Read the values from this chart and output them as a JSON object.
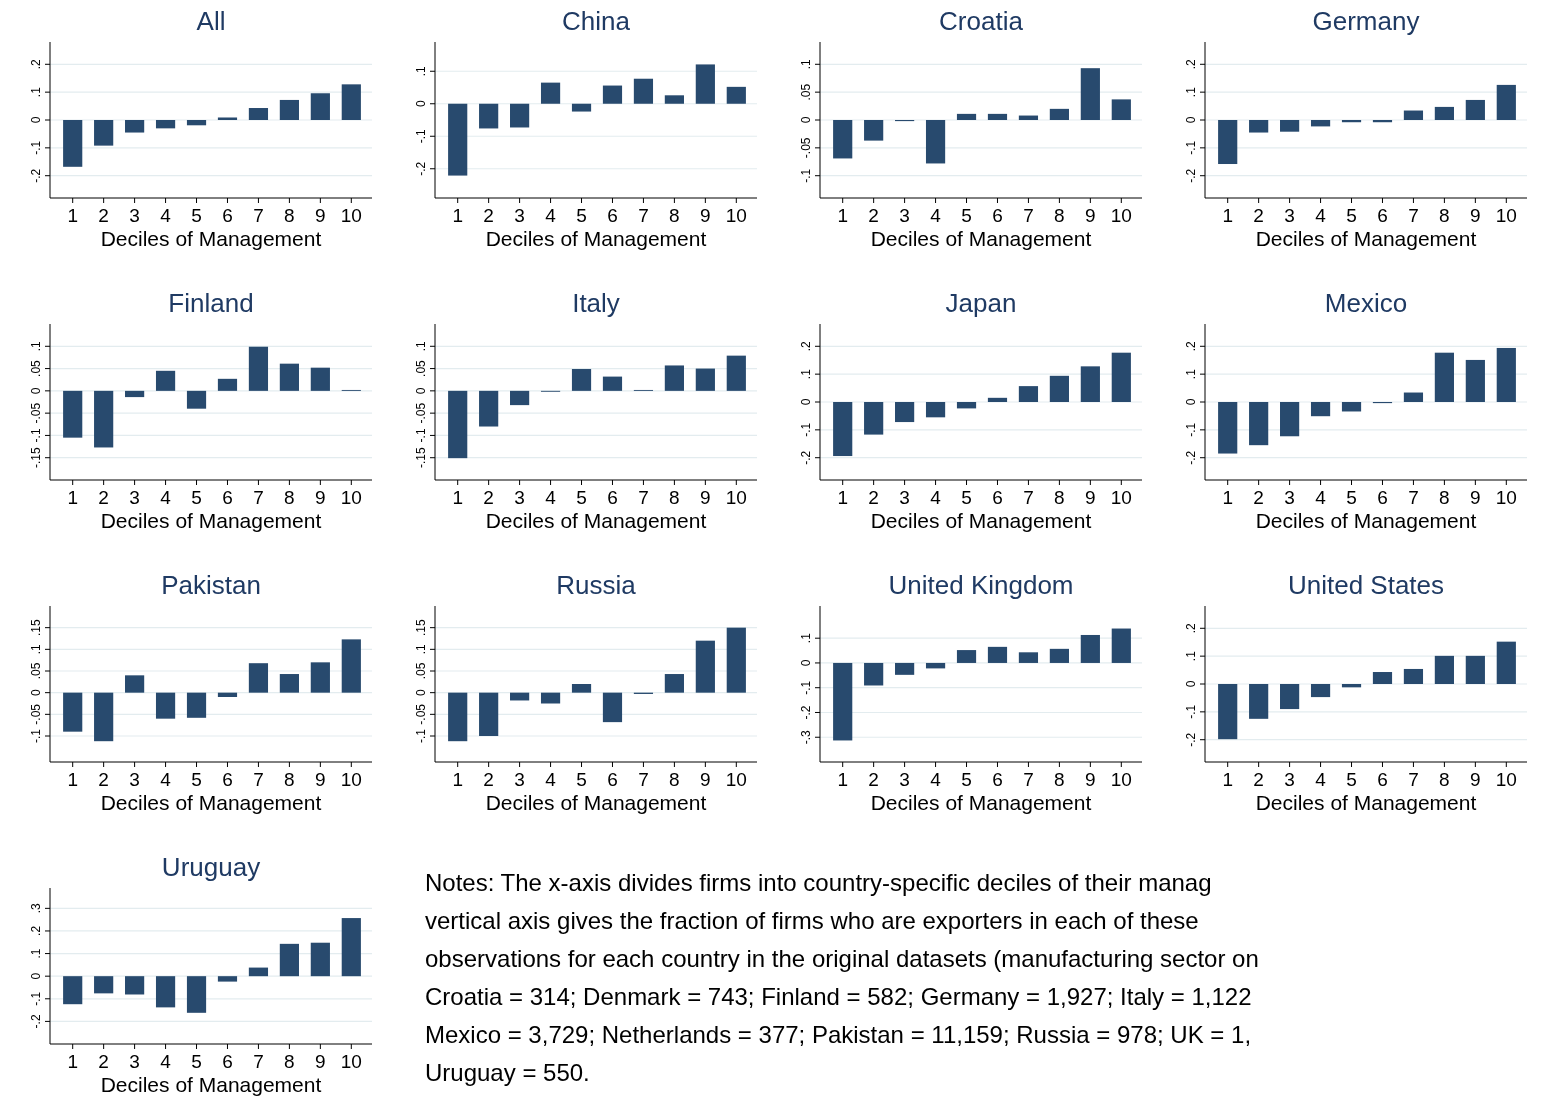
{
  "chart_data": [
    {
      "type": "bar",
      "title": "All",
      "xlabel": "Deciles of Management",
      "categories": [
        "1",
        "2",
        "3",
        "4",
        "5",
        "6",
        "7",
        "8",
        "9",
        "10"
      ],
      "values": [
        -0.168,
        -0.092,
        -0.045,
        -0.03,
        -0.019,
        0.009,
        0.043,
        0.072,
        0.096,
        0.128
      ],
      "color": "#284a6e",
      "ylim": [
        -0.28,
        0.28
      ],
      "yticks": [
        {
          "value": -0.2,
          "label": "-.2"
        },
        {
          "value": -0.1,
          "label": "-.1"
        },
        {
          "value": 0,
          "label": "0"
        },
        {
          "value": 0.1,
          "label": ".1"
        },
        {
          "value": 0.2,
          "label": ".2"
        }
      ],
      "grid": "y"
    },
    {
      "type": "bar",
      "title": "China",
      "xlabel": "Deciles of Management",
      "categories": [
        "1",
        "2",
        "3",
        "4",
        "5",
        "6",
        "7",
        "8",
        "9",
        "10"
      ],
      "values": [
        -0.221,
        -0.076,
        -0.073,
        0.065,
        -0.024,
        0.056,
        0.077,
        0.026,
        0.121,
        0.052
      ],
      "color": "#284a6e",
      "ylim": [
        -0.29,
        0.19
      ],
      "yticks": [
        {
          "value": -0.2,
          "label": "-.2"
        },
        {
          "value": -0.1,
          "label": "-.1"
        },
        {
          "value": 0,
          "label": "0"
        },
        {
          "value": 0.1,
          "label": ".1"
        }
      ],
      "grid": "y"
    },
    {
      "type": "bar",
      "title": "Croatia",
      "xlabel": "Deciles of Management",
      "categories": [
        "1",
        "2",
        "3",
        "4",
        "5",
        "6",
        "7",
        "8",
        "9",
        "10"
      ],
      "values": [
        -0.069,
        -0.037,
        -0.002,
        -0.078,
        0.011,
        0.011,
        0.008,
        0.02,
        0.093,
        0.037
      ],
      "color": "#284a6e",
      "ylim": [
        -0.14,
        0.14
      ],
      "yticks": [
        {
          "value": -0.1,
          "label": "-.1"
        },
        {
          "value": -0.05,
          "label": "-.05"
        },
        {
          "value": 0,
          "label": "0"
        },
        {
          "value": 0.05,
          "label": ".05"
        },
        {
          "value": 0.1,
          "label": ".1"
        }
      ],
      "grid": "y"
    },
    {
      "type": "bar",
      "title": "Germany",
      "xlabel": "Deciles of Management",
      "categories": [
        "1",
        "2",
        "3",
        "4",
        "5",
        "6",
        "7",
        "8",
        "9",
        "10"
      ],
      "values": [
        -0.158,
        -0.045,
        -0.042,
        -0.023,
        -0.008,
        -0.008,
        0.034,
        0.047,
        0.072,
        0.126
      ],
      "color": "#284a6e",
      "ylim": [
        -0.28,
        0.28
      ],
      "yticks": [
        {
          "value": -0.2,
          "label": "-.2"
        },
        {
          "value": -0.1,
          "label": "-.1"
        },
        {
          "value": 0,
          "label": "0"
        },
        {
          "value": 0.1,
          "label": ".1"
        },
        {
          "value": 0.2,
          "label": ".2"
        }
      ],
      "grid": "y"
    },
    {
      "type": "bar",
      "title": "Finland",
      "xlabel": "Deciles of Management",
      "categories": [
        "1",
        "2",
        "3",
        "4",
        "5",
        "6",
        "7",
        "8",
        "9",
        "10"
      ],
      "values": [
        -0.105,
        -0.127,
        -0.014,
        0.045,
        -0.04,
        0.027,
        0.099,
        0.061,
        0.052,
        0.002
      ],
      "color": "#284a6e",
      "ylim": [
        -0.2,
        0.15
      ],
      "yticks": [
        {
          "value": -0.15,
          "label": "-.15"
        },
        {
          "value": -0.1,
          "label": "-.1"
        },
        {
          "value": -0.05,
          "label": "-.05"
        },
        {
          "value": 0,
          "label": "0"
        },
        {
          "value": 0.05,
          "label": ".05"
        },
        {
          "value": 0.1,
          "label": ".1"
        }
      ],
      "grid": "y"
    },
    {
      "type": "bar",
      "title": "Italy",
      "xlabel": "Deciles of Management",
      "categories": [
        "1",
        "2",
        "3",
        "4",
        "5",
        "6",
        "7",
        "8",
        "9",
        "10"
      ],
      "values": [
        -0.151,
        -0.08,
        -0.032,
        -0.002,
        0.049,
        0.032,
        0.002,
        0.057,
        0.05,
        0.079
      ],
      "color": "#284a6e",
      "ylim": [
        -0.2,
        0.15
      ],
      "yticks": [
        {
          "value": -0.15,
          "label": "-.15"
        },
        {
          "value": -0.1,
          "label": "-.1"
        },
        {
          "value": -0.05,
          "label": "-.05"
        },
        {
          "value": 0,
          "label": "0"
        },
        {
          "value": 0.05,
          "label": ".05"
        },
        {
          "value": 0.1,
          "label": ".1"
        }
      ],
      "grid": "y"
    },
    {
      "type": "bar",
      "title": "Japan",
      "xlabel": "Deciles of Management",
      "categories": [
        "1",
        "2",
        "3",
        "4",
        "5",
        "6",
        "7",
        "8",
        "9",
        "10"
      ],
      "values": [
        -0.194,
        -0.117,
        -0.072,
        -0.055,
        -0.023,
        0.015,
        0.057,
        0.094,
        0.128,
        0.177
      ],
      "color": "#284a6e",
      "ylim": [
        -0.28,
        0.28
      ],
      "yticks": [
        {
          "value": -0.2,
          "label": "-.2"
        },
        {
          "value": -0.1,
          "label": "-.1"
        },
        {
          "value": 0,
          "label": "0"
        },
        {
          "value": 0.1,
          "label": ".1"
        },
        {
          "value": 0.2,
          "label": ".2"
        }
      ],
      "grid": "y"
    },
    {
      "type": "bar",
      "title": "Mexico",
      "xlabel": "Deciles of Management",
      "categories": [
        "1",
        "2",
        "3",
        "4",
        "5",
        "6",
        "7",
        "8",
        "9",
        "10"
      ],
      "values": [
        -0.185,
        -0.155,
        -0.123,
        -0.051,
        -0.034,
        -0.004,
        0.034,
        0.177,
        0.151,
        0.194
      ],
      "color": "#284a6e",
      "ylim": [
        -0.28,
        0.28
      ],
      "yticks": [
        {
          "value": -0.2,
          "label": "-.2"
        },
        {
          "value": -0.1,
          "label": "-.1"
        },
        {
          "value": 0,
          "label": "0"
        },
        {
          "value": 0.1,
          "label": ".1"
        },
        {
          "value": 0.2,
          "label": ".2"
        }
      ],
      "grid": "y"
    },
    {
      "type": "bar",
      "title": "Pakistan",
      "xlabel": "Deciles of Management",
      "categories": [
        "1",
        "2",
        "3",
        "4",
        "5",
        "6",
        "7",
        "8",
        "9",
        "10"
      ],
      "values": [
        -0.09,
        -0.112,
        0.04,
        -0.06,
        -0.058,
        -0.01,
        0.068,
        0.043,
        0.07,
        0.123
      ],
      "color": "#284a6e",
      "ylim": [
        -0.16,
        0.2
      ],
      "yticks": [
        {
          "value": -0.1,
          "label": "-.1"
        },
        {
          "value": -0.05,
          "label": "-.05"
        },
        {
          "value": 0,
          "label": "0"
        },
        {
          "value": 0.05,
          "label": ".05"
        },
        {
          "value": 0.1,
          "label": ".1"
        },
        {
          "value": 0.15,
          "label": ".15"
        }
      ],
      "grid": "y"
    },
    {
      "type": "bar",
      "title": "Russia",
      "xlabel": "Deciles of Management",
      "categories": [
        "1",
        "2",
        "3",
        "4",
        "5",
        "6",
        "7",
        "8",
        "9",
        "10"
      ],
      "values": [
        -0.112,
        -0.1,
        -0.018,
        -0.025,
        0.02,
        -0.068,
        -0.003,
        0.043,
        0.12,
        0.15
      ],
      "color": "#284a6e",
      "ylim": [
        -0.16,
        0.2
      ],
      "yticks": [
        {
          "value": -0.1,
          "label": "-.1"
        },
        {
          "value": -0.05,
          "label": "-.05"
        },
        {
          "value": 0,
          "label": "0"
        },
        {
          "value": 0.05,
          "label": ".05"
        },
        {
          "value": 0.1,
          "label": ".1"
        },
        {
          "value": 0.15,
          "label": ".15"
        }
      ],
      "grid": "y"
    },
    {
      "type": "bar",
      "title": "United Kingdom",
      "xlabel": "Deciles of Management",
      "categories": [
        "1",
        "2",
        "3",
        "4",
        "5",
        "6",
        "7",
        "8",
        "9",
        "10"
      ],
      "values": [
        -0.313,
        -0.091,
        -0.048,
        -0.022,
        0.052,
        0.065,
        0.043,
        0.057,
        0.113,
        0.139
      ],
      "color": "#284a6e",
      "ylim": [
        -0.4,
        0.23
      ],
      "yticks": [
        {
          "value": -0.3,
          "label": "-.3"
        },
        {
          "value": -0.2,
          "label": "-.2"
        },
        {
          "value": -0.1,
          "label": "-.1"
        },
        {
          "value": 0,
          "label": "0"
        },
        {
          "value": 0.1,
          "label": ".1"
        }
      ],
      "grid": "y"
    },
    {
      "type": "bar",
      "title": "United States",
      "xlabel": "Deciles of Management",
      "categories": [
        "1",
        "2",
        "3",
        "4",
        "5",
        "6",
        "7",
        "8",
        "9",
        "10"
      ],
      "values": [
        -0.198,
        -0.125,
        -0.09,
        -0.047,
        -0.012,
        0.043,
        0.054,
        0.101,
        0.101,
        0.152
      ],
      "color": "#284a6e",
      "ylim": [
        -0.28,
        0.28
      ],
      "yticks": [
        {
          "value": -0.2,
          "label": "-.2"
        },
        {
          "value": -0.1,
          "label": "-.1"
        },
        {
          "value": 0,
          "label": "0"
        },
        {
          "value": 0.1,
          "label": ".1"
        },
        {
          "value": 0.2,
          "label": ".2"
        }
      ],
      "grid": "y"
    },
    {
      "type": "bar",
      "title": "Uruguay",
      "xlabel": "Deciles of Management",
      "categories": [
        "1",
        "2",
        "3",
        "4",
        "5",
        "6",
        "7",
        "8",
        "9",
        "10"
      ],
      "values": [
        -0.124,
        -0.076,
        -0.081,
        -0.138,
        -0.162,
        -0.024,
        0.038,
        0.143,
        0.148,
        0.257
      ],
      "color": "#284a6e",
      "ylim": [
        -0.3,
        0.39
      ],
      "yticks": [
        {
          "value": -0.2,
          "label": "-.2"
        },
        {
          "value": -0.1,
          "label": "-.1"
        },
        {
          "value": 0,
          "label": "0"
        },
        {
          "value": 0.1,
          "label": ".1"
        },
        {
          "value": 0.2,
          "label": ".2"
        },
        {
          "value": 0.3,
          "label": ".3"
        }
      ],
      "grid": "y",
      "annotations": [
        "Notes: The x-axis divides firms into country-specific  deciles of their manag",
        "vertical axis gives the fraction of firms who are exporters in each of these",
        "observations for each country in the original datasets (manufacturing sector on",
        "Croatia = 314; Denmark = 743; Finland = 582; Germany = 1,927; Italy = 1,122",
        "Mexico = 3,729; Netherlands = 377; Pakistan = 11,159; Russia = 978; UK = 1,",
        "Uruguay = 550."
      ]
    }
  ]
}
